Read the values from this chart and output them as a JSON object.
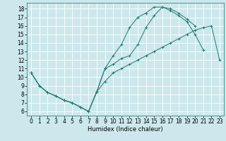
{
  "title": "",
  "xlabel": "Humidex (Indice chaleur)",
  "bg_color": "#cce8ed",
  "grid_color": "#ffffff",
  "line_color": "#1e7a6e",
  "xlim": [
    -0.5,
    23.5
  ],
  "ylim": [
    5.5,
    18.7
  ],
  "xticks": [
    0,
    1,
    2,
    3,
    4,
    5,
    6,
    7,
    8,
    9,
    10,
    11,
    12,
    13,
    14,
    15,
    16,
    17,
    18,
    19,
    20,
    21,
    22,
    23
  ],
  "yticks": [
    6,
    7,
    8,
    9,
    10,
    11,
    12,
    13,
    14,
    15,
    16,
    17,
    18
  ],
  "line1_x": [
    0,
    1,
    2,
    3,
    4,
    5,
    6,
    7,
    8,
    9,
    10,
    11,
    12,
    13,
    14,
    15,
    16,
    17,
    18,
    19,
    20,
    21
  ],
  "line1_y": [
    10.5,
    9.0,
    8.2,
    7.8,
    7.3,
    7.0,
    6.5,
    6.0,
    8.3,
    11.0,
    11.5,
    12.2,
    12.5,
    13.8,
    15.8,
    17.2,
    18.2,
    17.8,
    17.2,
    16.5,
    15.0,
    13.2
  ],
  "line2_x": [
    0,
    1,
    2,
    3,
    4,
    5,
    6,
    7,
    8,
    9,
    10,
    11,
    12,
    13,
    14,
    15,
    16,
    17,
    18,
    19,
    20
  ],
  "line2_y": [
    10.5,
    9.0,
    8.2,
    7.8,
    7.3,
    7.0,
    6.5,
    6.0,
    8.3,
    11.0,
    12.5,
    13.8,
    15.8,
    17.0,
    17.5,
    18.2,
    18.2,
    18.0,
    17.5,
    16.8,
    16.0
  ],
  "line3_x": [
    0,
    1,
    2,
    3,
    4,
    5,
    6,
    7,
    8,
    9,
    10,
    11,
    12,
    13,
    14,
    15,
    16,
    17,
    18,
    19,
    20,
    21,
    22,
    23
  ],
  "line3_y": [
    10.5,
    9.0,
    8.2,
    7.8,
    7.3,
    7.0,
    6.5,
    6.0,
    8.3,
    9.5,
    10.5,
    11.0,
    11.5,
    12.0,
    12.5,
    13.0,
    13.5,
    14.0,
    14.5,
    15.0,
    15.5,
    15.8,
    16.0,
    12.0
  ],
  "tick_fontsize": 5.5,
  "xlabel_fontsize": 6.0
}
